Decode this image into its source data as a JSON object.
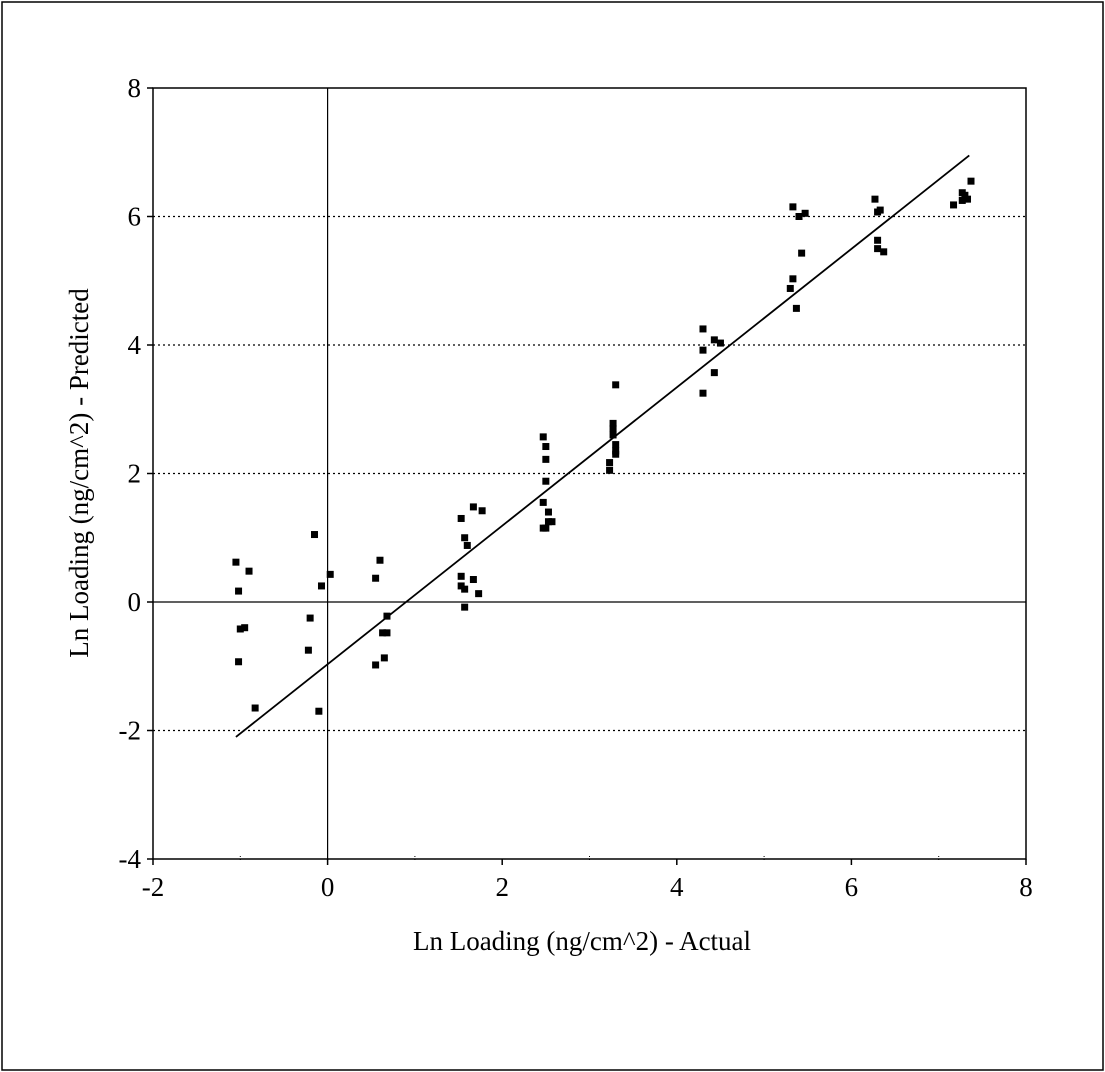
{
  "chart_data": {
    "type": "scatter",
    "xlabel": "Ln Loading (ng/cm^2) - Actual",
    "ylabel": "Ln Loading (ng/cm^2) - Predicted",
    "xlim": [
      -2,
      8
    ],
    "ylim": [
      -4,
      8
    ],
    "x_ticks": [
      "-2",
      "0",
      "2",
      "4",
      "6",
      "8"
    ],
    "y_ticks": [
      "-4",
      "-2",
      "0",
      "2",
      "4",
      "6",
      "8"
    ],
    "horizontal_gridlines": "dotted at y = -2, 2, 4, 6",
    "reference_axes": "solid lines at x = 0 and y = 0",
    "marker": "filled square",
    "marker_color": "#000000",
    "line_color": "#000000",
    "fit_line": {
      "x": [
        -1.05,
        7.35
      ],
      "y": [
        -2.1,
        6.95
      ]
    },
    "points": [
      [
        -1.05,
        0.62
      ],
      [
        -1.02,
        0.17
      ],
      [
        -1.0,
        -0.42
      ],
      [
        -0.95,
        -0.4
      ],
      [
        -0.9,
        0.48
      ],
      [
        -1.02,
        -0.93
      ],
      [
        -0.83,
        -1.65
      ],
      [
        -0.15,
        1.05
      ],
      [
        -0.2,
        -0.25
      ],
      [
        -0.22,
        -0.75
      ],
      [
        -0.1,
        -1.7
      ],
      [
        -0.07,
        0.25
      ],
      [
        0.03,
        0.43
      ],
      [
        0.55,
        0.37
      ],
      [
        0.6,
        0.65
      ],
      [
        0.55,
        -0.98
      ],
      [
        0.63,
        -0.48
      ],
      [
        0.68,
        -0.48
      ],
      [
        0.68,
        -0.22
      ],
      [
        0.65,
        -0.87
      ],
      [
        1.53,
        1.3
      ],
      [
        1.57,
        1.0
      ],
      [
        1.6,
        0.88
      ],
      [
        1.67,
        1.48
      ],
      [
        1.77,
        1.42
      ],
      [
        1.53,
        0.4
      ],
      [
        1.53,
        0.25
      ],
      [
        1.57,
        0.2
      ],
      [
        1.57,
        -0.08
      ],
      [
        1.67,
        0.35
      ],
      [
        1.73,
        0.13
      ],
      [
        2.47,
        2.57
      ],
      [
        2.5,
        2.42
      ],
      [
        2.5,
        2.22
      ],
      [
        2.5,
        1.88
      ],
      [
        2.47,
        1.55
      ],
      [
        2.53,
        1.4
      ],
      [
        2.53,
        1.25
      ],
      [
        2.57,
        1.25
      ],
      [
        2.47,
        1.15
      ],
      [
        2.5,
        1.15
      ],
      [
        3.3,
        3.38
      ],
      [
        3.27,
        2.78
      ],
      [
        3.27,
        2.7
      ],
      [
        3.27,
        2.6
      ],
      [
        3.3,
        2.45
      ],
      [
        3.3,
        2.35
      ],
      [
        3.3,
        2.3
      ],
      [
        3.23,
        2.17
      ],
      [
        3.23,
        2.05
      ],
      [
        4.3,
        4.25
      ],
      [
        4.3,
        3.92
      ],
      [
        4.43,
        4.08
      ],
      [
        4.5,
        4.03
      ],
      [
        4.43,
        3.57
      ],
      [
        4.3,
        3.25
      ],
      [
        5.33,
        6.15
      ],
      [
        5.4,
        6.0
      ],
      [
        5.47,
        6.05
      ],
      [
        5.43,
        5.43
      ],
      [
        5.33,
        5.03
      ],
      [
        5.3,
        4.88
      ],
      [
        5.37,
        4.57
      ],
      [
        6.27,
        6.27
      ],
      [
        6.3,
        6.07
      ],
      [
        6.33,
        6.1
      ],
      [
        6.3,
        5.63
      ],
      [
        6.3,
        5.5
      ],
      [
        6.37,
        5.45
      ],
      [
        7.27,
        6.37
      ],
      [
        7.3,
        6.33
      ],
      [
        7.33,
        6.27
      ],
      [
        7.27,
        6.25
      ],
      [
        7.17,
        6.18
      ],
      [
        7.37,
        6.55
      ]
    ]
  }
}
